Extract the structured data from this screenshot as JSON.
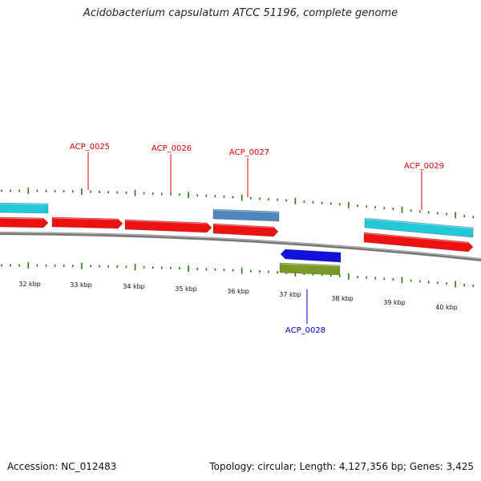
{
  "header": {
    "title": "Acidobacterium capsulatum ATCC 51196, complete genome"
  },
  "footer": {
    "accession": "Accession: NC_012483",
    "summary": "Topology: circular; Length: 4,127,356 bp; Genes: 3,425"
  },
  "colors": {
    "forward_cds": "#ee1111",
    "reverse_cds": "#1111dd",
    "forward_label": "#dd0000",
    "reverse_label": "#0000cc",
    "tick": "#2a7a10",
    "backbone": "#777777",
    "rna_cyan": "#22c8d8",
    "steelblue": "#4f86bb",
    "olive": "#7a9a28"
  },
  "kbp_labels": [
    "32 kbp",
    "33 kbp",
    "34 kbp",
    "35 kbp",
    "36 kbp",
    "37 kbp",
    "38 kbp",
    "39 kbp",
    "40 kbp"
  ],
  "gene_labels": [
    {
      "text": "ACP_0025",
      "strand": "forward"
    },
    {
      "text": "ACP_0026",
      "strand": "forward"
    },
    {
      "text": "ACP_0027",
      "strand": "forward"
    },
    {
      "text": "ACP_0029",
      "strand": "forward"
    },
    {
      "text": "ACP_0028",
      "strand": "reverse"
    }
  ]
}
